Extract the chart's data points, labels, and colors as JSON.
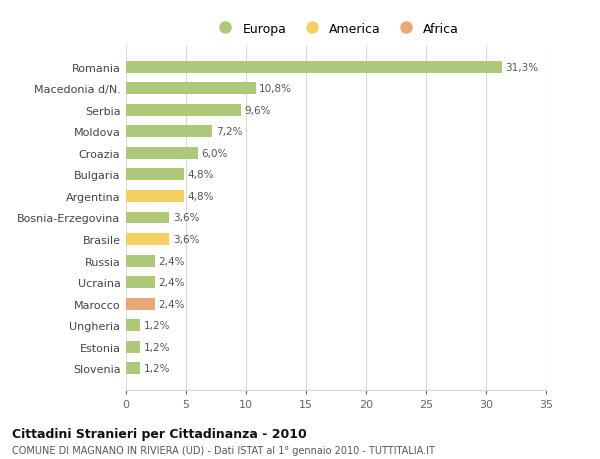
{
  "categories": [
    "Romania",
    "Macedonia d/N.",
    "Serbia",
    "Moldova",
    "Croazia",
    "Bulgaria",
    "Argentina",
    "Bosnia-Erzegovina",
    "Brasile",
    "Russia",
    "Ucraina",
    "Marocco",
    "Ungheria",
    "Estonia",
    "Slovenia"
  ],
  "values": [
    31.3,
    10.8,
    9.6,
    7.2,
    6.0,
    4.8,
    4.8,
    3.6,
    3.6,
    2.4,
    2.4,
    2.4,
    1.2,
    1.2,
    1.2
  ],
  "labels": [
    "31,3%",
    "10,8%",
    "9,6%",
    "7,2%",
    "6,0%",
    "4,8%",
    "4,8%",
    "3,6%",
    "3,6%",
    "2,4%",
    "2,4%",
    "2,4%",
    "1,2%",
    "1,2%",
    "1,2%"
  ],
  "colors": [
    "#aec87a",
    "#aec87a",
    "#aec87a",
    "#aec87a",
    "#aec87a",
    "#aec87a",
    "#f5d060",
    "#aec87a",
    "#f5d060",
    "#aec87a",
    "#aec87a",
    "#e8a878",
    "#aec87a",
    "#aec87a",
    "#aec87a"
  ],
  "legend_labels": [
    "Europa",
    "America",
    "Africa"
  ],
  "legend_colors": [
    "#aec87a",
    "#f5d060",
    "#e8a878"
  ],
  "title": "Cittadini Stranieri per Cittadinanza - 2010",
  "subtitle": "COMUNE DI MAGNANO IN RIVIERA (UD) - Dati ISTAT al 1° gennaio 2010 - TUTTITALIA.IT",
  "xlim": [
    0,
    35
  ],
  "xticks": [
    0,
    5,
    10,
    15,
    20,
    25,
    30,
    35
  ],
  "bg_color": "#ffffff",
  "grid_color": "#d8d8d8",
  "bar_height": 0.55,
  "fig_width": 6.0,
  "fig_height": 4.6,
  "dpi": 100
}
